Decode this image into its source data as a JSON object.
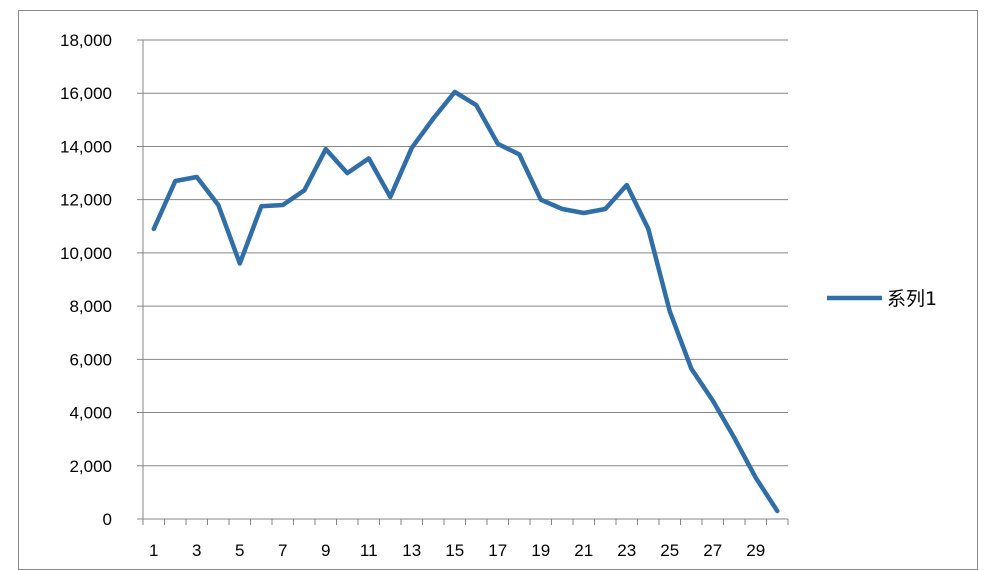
{
  "chart_data": {
    "type": "line",
    "title": "",
    "xlabel": "",
    "ylabel": "",
    "x": [
      1,
      2,
      3,
      4,
      5,
      6,
      7,
      8,
      9,
      10,
      11,
      12,
      13,
      14,
      15,
      16,
      17,
      18,
      19,
      20,
      21,
      22,
      23,
      24,
      25,
      26,
      27,
      28,
      29,
      30
    ],
    "x_tick_labels": [
      "1",
      "3",
      "5",
      "7",
      "9",
      "11",
      "13",
      "15",
      "17",
      "19",
      "21",
      "23",
      "25",
      "27",
      "29"
    ],
    "y_tick_labels": [
      "0",
      "2,000",
      "4,000",
      "6,000",
      "8,000",
      "10,000",
      "12,000",
      "14,000",
      "16,000",
      "18,000"
    ],
    "ylim": [
      0,
      18000
    ],
    "grid": true,
    "legend_position": "right",
    "series": [
      {
        "name": "系列1",
        "color": "#2f6ea6",
        "values": [
          10900,
          12700,
          12850,
          11800,
          9600,
          11750,
          11800,
          12350,
          13900,
          13000,
          13550,
          12100,
          13950,
          15050,
          16050,
          15550,
          14100,
          13700,
          12000,
          11650,
          11500,
          11650,
          12550,
          10900,
          7800,
          5650,
          4450,
          3050,
          1550,
          300
        ]
      }
    ]
  }
}
